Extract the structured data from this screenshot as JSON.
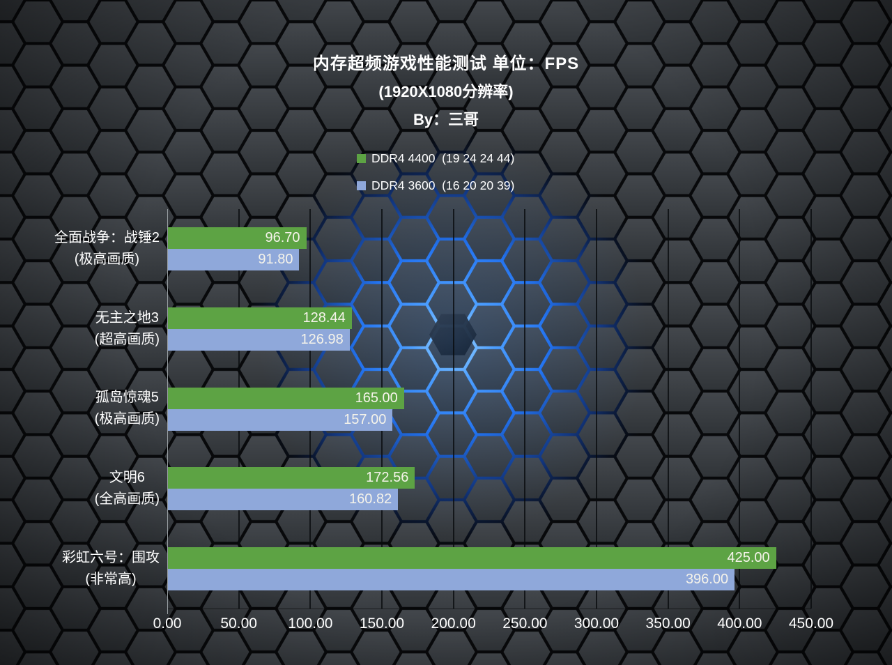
{
  "title": {
    "line1": "内存超频游戏性能测试 单位：FPS",
    "line2": "(1920X1080分辨率)",
    "line3": "By：三哥"
  },
  "legend": {
    "items": [
      {
        "label": "DDR4 4400  (19 24 24 44)",
        "color": "#5da344"
      },
      {
        "label": "DDR4 3600  (16 20 20 39)",
        "color": "#8fa8da"
      }
    ]
  },
  "chart_data": {
    "type": "bar",
    "orientation": "horizontal",
    "unit": "FPS",
    "title": "内存超频游戏性能测试 单位：FPS (1920X1080分辨率) By：三哥",
    "categories": [
      {
        "name": "全面战争：战锤2",
        "quality": "(极高画质)"
      },
      {
        "name": "无主之地3",
        "quality": "(超高画质)"
      },
      {
        "name": "孤岛惊魂5",
        "quality": "(极高画质)"
      },
      {
        "name": "文明6",
        "quality": "(全高画质)"
      },
      {
        "name": "彩虹六号：围攻",
        "quality": "(非常高)"
      }
    ],
    "series": [
      {
        "name": "DDR4 4400 (19 24 24 44)",
        "color": "#5da344",
        "values": [
          96.7,
          128.44,
          165.0,
          172.56,
          425.0
        ]
      },
      {
        "name": "DDR4 3600 (16 20 20 39)",
        "color": "#8fa8da",
        "values": [
          91.8,
          126.98,
          157.0,
          160.82,
          396.0
        ]
      }
    ],
    "xlim": [
      0,
      450
    ],
    "x_ticks": [
      "0.00",
      "50.00",
      "100.00",
      "150.00",
      "200.00",
      "250.00",
      "300.00",
      "350.00",
      "400.00",
      "450.00"
    ],
    "grid": true,
    "legend_position": "top",
    "value_label_decimals": 2
  },
  "colors": {
    "text": "#ffffff",
    "value_label": "#f5f3ea",
    "axis_line": "#9aa0a4",
    "gridline": "#0a0c0e",
    "glow": "#2f7dff",
    "hex_face_top": "#43474c",
    "hex_face_bottom": "#303438"
  }
}
